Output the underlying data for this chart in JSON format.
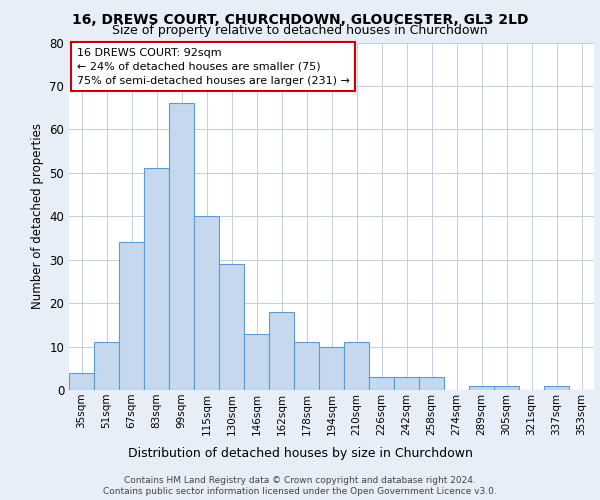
{
  "title_line1": "16, DREWS COURT, CHURCHDOWN, GLOUCESTER, GL3 2LD",
  "title_line2": "Size of property relative to detached houses in Churchdown",
  "xlabel": "Distribution of detached houses by size in Churchdown",
  "ylabel": "Number of detached properties",
  "categories": [
    "35sqm",
    "51sqm",
    "67sqm",
    "83sqm",
    "99sqm",
    "115sqm",
    "130sqm",
    "146sqm",
    "162sqm",
    "178sqm",
    "194sqm",
    "210sqm",
    "226sqm",
    "242sqm",
    "258sqm",
    "274sqm",
    "289sqm",
    "305sqm",
    "321sqm",
    "337sqm",
    "353sqm"
  ],
  "values": [
    4,
    11,
    34,
    51,
    66,
    40,
    29,
    13,
    18,
    11,
    10,
    11,
    3,
    3,
    3,
    0,
    1,
    1,
    0,
    1,
    0
  ],
  "bar_color": "#c5d8ed",
  "bar_edge_color": "#5b9bd5",
  "ylim": [
    0,
    80
  ],
  "yticks": [
    0,
    10,
    20,
    30,
    40,
    50,
    60,
    70,
    80
  ],
  "annotation_text_line1": "16 DREWS COURT: 92sqm",
  "annotation_text_line2": "← 24% of detached houses are smaller (75)",
  "annotation_text_line3": "75% of semi-detached houses are larger (231) →",
  "annotation_box_facecolor": "#ffffff",
  "annotation_box_edgecolor": "#cc0000",
  "footer_line1": "Contains HM Land Registry data © Crown copyright and database right 2024.",
  "footer_line2": "Contains public sector information licensed under the Open Government Licence v3.0.",
  "bg_color": "#e8eef7",
  "plot_bg_color": "#ffffff",
  "grid_color": "#c0cfe0"
}
